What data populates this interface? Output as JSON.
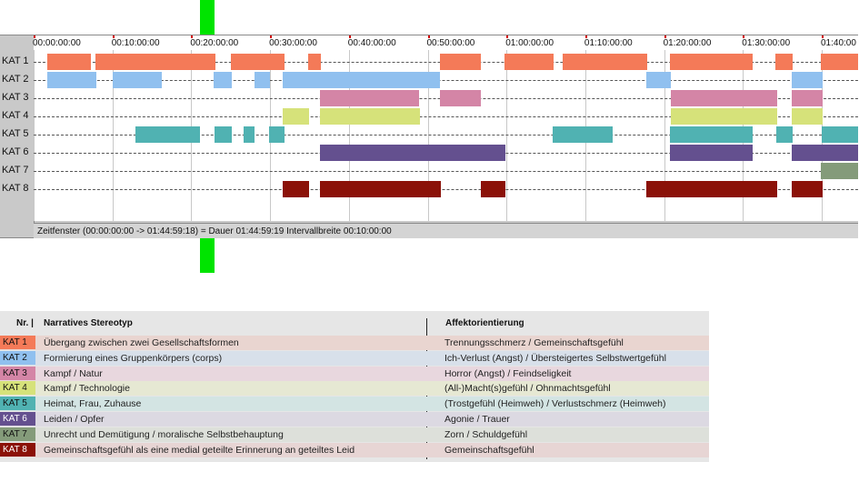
{
  "timeline": {
    "ticks": [
      "00:00:00:00",
      "00:10:00:00",
      "00:20:00:00",
      "00:30:00:00",
      "00:40:00:00",
      "00:50:00:00",
      "01:00:00:00",
      "01:10:00:00",
      "01:20:00:00",
      "01:30:00:00",
      "01:40:00"
    ],
    "rows": [
      {
        "label": "KAT 1",
        "color": "#f47a58",
        "segments": [
          [
            52,
            100
          ],
          [
            105,
            237
          ],
          [
            254,
            313
          ],
          [
            339,
            353
          ],
          [
            484,
            529
          ],
          [
            555,
            609
          ],
          [
            619,
            712
          ],
          [
            737,
            828
          ],
          [
            853,
            872
          ],
          [
            903,
            944
          ]
        ]
      },
      {
        "label": "KAT 2",
        "color": "#90c0ef",
        "segments": [
          [
            52,
            106
          ],
          [
            124,
            178
          ],
          [
            235,
            255
          ],
          [
            280,
            297
          ],
          [
            311,
            484
          ],
          [
            711,
            738
          ],
          [
            871,
            905
          ]
        ]
      },
      {
        "label": "KAT 3",
        "color": "#d485a6",
        "segments": [
          [
            352,
            461
          ],
          [
            484,
            529
          ],
          [
            738,
            855
          ],
          [
            871,
            905
          ]
        ]
      },
      {
        "label": "KAT 4",
        "color": "#d6e27a",
        "segments": [
          [
            311,
            340
          ],
          [
            352,
            462
          ],
          [
            738,
            855
          ],
          [
            871,
            905
          ]
        ]
      },
      {
        "label": "KAT 5",
        "color": "#50b2b2",
        "segments": [
          [
            149,
            220
          ],
          [
            236,
            255
          ],
          [
            268,
            280
          ],
          [
            296,
            313
          ],
          [
            608,
            674
          ],
          [
            737,
            828
          ],
          [
            854,
            872
          ],
          [
            904,
            944
          ]
        ]
      },
      {
        "label": "KAT 6",
        "color": "#64508f",
        "segments": [
          [
            352,
            556
          ],
          [
            737,
            828
          ],
          [
            871,
            944
          ]
        ]
      },
      {
        "label": "KAT 7",
        "color": "#849b7a",
        "segments": [
          [
            903,
            944
          ]
        ]
      },
      {
        "label": "KAT 8",
        "color": "#8b1108",
        "segments": [
          [
            311,
            340
          ],
          [
            352,
            485
          ],
          [
            529,
            556
          ],
          [
            711,
            855
          ],
          [
            871,
            905
          ]
        ]
      }
    ],
    "status": "Zeitfenster (00:00:00:00 -> 01:44:59:18) = Dauer 01:44:59:19    Intervallbreite 00:10:00:00"
  },
  "legend": {
    "header_nr": "Nr. |",
    "header_stereotyp": "Narratives Stereotyp",
    "header_affekt": "Affektorientierung",
    "rows": [
      {
        "nr": "KAT 1",
        "stereotyp": "Übergang zwischen zwei Gesellschaftsformen",
        "affekt": "Trennungsschmerz / Gemeinschaftsgefühl",
        "color": "#f47a58",
        "bg": "#e9d5d0",
        "text_color": "#111"
      },
      {
        "nr": "KAT 2",
        "stereotyp": "Formierung eines Gruppenkörpers (corps)",
        "affekt": "Ich-Verlust (Angst) / Übersteigertes Selbstwertgefühl",
        "color": "#90c0ef",
        "bg": "#d8e0ea",
        "text_color": "#111"
      },
      {
        "nr": "KAT 3",
        "stereotyp": "Kampf / Natur",
        "affekt": "Horror (Angst) / Feindseligkeit",
        "color": "#d485a6",
        "bg": "#e8d7de",
        "text_color": "#111"
      },
      {
        "nr": "KAT 4",
        "stereotyp": "Kampf / Technologie",
        "affekt": "(All-)Macht(s)gefühl / Ohnmachtsgefühl",
        "color": "#d6e27a",
        "bg": "#e6e8d3",
        "text_color": "#111"
      },
      {
        "nr": "KAT 5",
        "stereotyp": "Heimat, Frau, Zuhause",
        "affekt": "(Trostgefühl (Heimweh) / Verlustschmerz (Heimweh)",
        "color": "#50b2b2",
        "bg": "#d3e4e3",
        "text_color": "#111"
      },
      {
        "nr": "KAT 6",
        "stereotyp": "Leiden / Opfer",
        "affekt": "Agonie / Trauer",
        "color": "#64508f",
        "bg": "#dcd9e2",
        "text_color": "#ffffff"
      },
      {
        "nr": "KAT 7",
        "stereotyp": "Unrecht und Demütigung / moralische Selbstbehauptung",
        "affekt": "Zorn / Schuldgefühl",
        "color": "#849b7a",
        "bg": "#dde0da",
        "text_color": "#111"
      },
      {
        "nr": "KAT 8",
        "stereotyp": "Gemeinschaftsgefühl als eine medial geteilte Erinnerung an geteiltes Leid",
        "affekt": "Gemeinschaftsgefühl",
        "color": "#8b1108",
        "bg": "#e7d5d4",
        "text_color": "#ffffff"
      }
    ]
  }
}
